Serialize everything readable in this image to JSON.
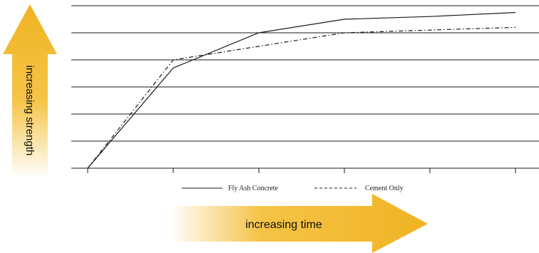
{
  "chart_data": {
    "type": "line",
    "title": "",
    "xlabel": "increasing time",
    "ylabel": "increasing strength",
    "x": [
      0,
      1,
      2,
      3,
      4,
      5
    ],
    "xlim": [
      0,
      5
    ],
    "ylim": [
      0,
      6
    ],
    "grid": "horizontal",
    "legend_position": "bottom",
    "series": [
      {
        "name": "Fly Ash Concrete",
        "style": "solid",
        "x": [
          0,
          1,
          2,
          3,
          4,
          5
        ],
        "values": [
          0,
          3.7,
          5.0,
          5.5,
          5.6,
          5.75
        ]
      },
      {
        "name": "Cement Only",
        "style": "dashdot",
        "x": [
          0,
          1,
          2,
          3,
          4,
          5
        ],
        "values": [
          0,
          4.0,
          4.5,
          5.0,
          5.1,
          5.2
        ]
      }
    ]
  },
  "colors": {
    "arrow_gold": "#f0b323",
    "arrow_fade": "#ffffff",
    "line": "#1a1a1a",
    "grid": "#1a1a1a"
  }
}
